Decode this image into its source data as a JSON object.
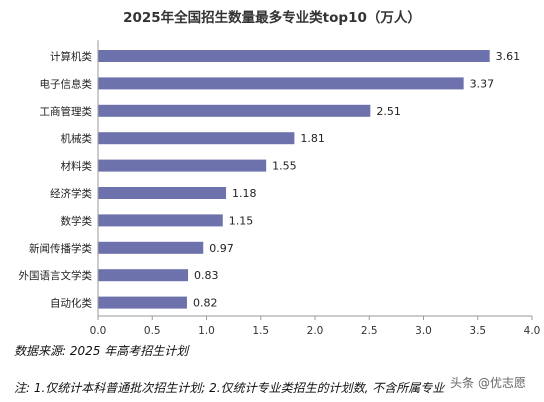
{
  "chart_data": {
    "type": "bar",
    "orientation": "horizontal",
    "title": "2025年全国招生数量最多专业类top10（万人）",
    "categories": [
      "计算机类",
      "电子信息类",
      "工商管理类",
      "机械类",
      "材料类",
      "经济学类",
      "数学类",
      "新闻传播学类",
      "外国语言文学类",
      "自动化类"
    ],
    "values": [
      3.61,
      3.37,
      2.51,
      1.81,
      1.55,
      1.18,
      1.15,
      0.97,
      0.83,
      0.82
    ],
    "value_labels": [
      "3.61",
      "3.37",
      "2.51",
      "1.81",
      "1.55",
      "1.18",
      "1.15",
      "0.97",
      "0.83",
      "0.82"
    ],
    "xlim": [
      0,
      4.0
    ],
    "xticks": [
      0.0,
      0.5,
      1.0,
      1.5,
      2.0,
      2.5,
      3.0,
      3.5,
      4.0
    ],
    "xtick_labels": [
      "0.0",
      "0.5",
      "1.0",
      "1.5",
      "2.0",
      "2.5",
      "3.0",
      "3.5",
      "4.0"
    ],
    "grid": false,
    "legend": "none",
    "bar_color": "#6e72ac",
    "axis_color": "#9a9a9a"
  },
  "footer": {
    "source": "数据来源: 2025 年高考招生计划",
    "note": "注: 1.仅统计本科普通批次招生计划; 2.仅统计专业类招生的计划数, 不含所属专业",
    "byline": "头条 @优志愿"
  }
}
